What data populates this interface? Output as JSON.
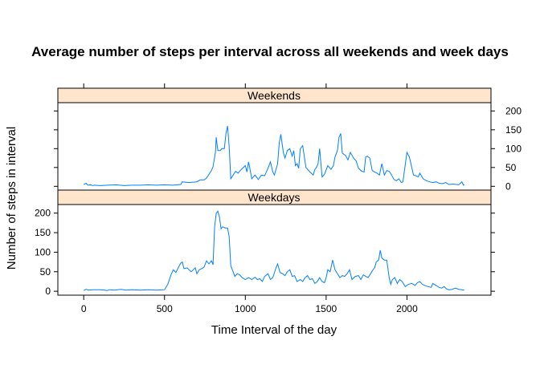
{
  "chart_data": {
    "type": "line",
    "title": "Average number of steps per interval across all weekends and week days",
    "xlabel": "Time Interval of the day",
    "ylabel": "Number of steps in interval",
    "xlim": [
      -160,
      2520
    ],
    "ylim": [
      -10,
      222
    ],
    "x_ticks": [
      0,
      500,
      1000,
      1500,
      2000
    ],
    "y_ticks": [
      0,
      50,
      100,
      150,
      200
    ],
    "line_color": "#0080ff",
    "strip_color": "#ffe5cc",
    "panels": [
      {
        "name": "Weekends",
        "y_axis_side": "right",
        "points": [
          [
            0,
            5
          ],
          [
            15,
            8
          ],
          [
            25,
            3
          ],
          [
            45,
            4
          ],
          [
            55,
            2
          ],
          [
            65,
            3
          ],
          [
            100,
            2
          ],
          [
            150,
            3
          ],
          [
            200,
            4
          ],
          [
            250,
            2
          ],
          [
            300,
            3
          ],
          [
            350,
            3
          ],
          [
            400,
            4
          ],
          [
            450,
            3
          ],
          [
            500,
            4
          ],
          [
            550,
            3
          ],
          [
            600,
            5
          ],
          [
            610,
            12
          ],
          [
            650,
            10
          ],
          [
            700,
            12
          ],
          [
            720,
            17
          ],
          [
            745,
            17
          ],
          [
            760,
            22
          ],
          [
            790,
            42
          ],
          [
            800,
            52
          ],
          [
            815,
            90
          ],
          [
            820,
            130
          ],
          [
            830,
            95
          ],
          [
            845,
            95
          ],
          [
            855,
            100
          ],
          [
            870,
            100
          ],
          [
            880,
            140
          ],
          [
            890,
            160
          ],
          [
            900,
            105
          ],
          [
            910,
            20
          ],
          [
            925,
            30
          ],
          [
            940,
            40
          ],
          [
            955,
            35
          ],
          [
            975,
            45
          ],
          [
            1000,
            55
          ],
          [
            1010,
            38
          ],
          [
            1020,
            65
          ],
          [
            1025,
            55
          ],
          [
            1040,
            20
          ],
          [
            1060,
            30
          ],
          [
            1080,
            18
          ],
          [
            1100,
            30
          ],
          [
            1120,
            28
          ],
          [
            1140,
            48
          ],
          [
            1155,
            65
          ],
          [
            1170,
            38
          ],
          [
            1180,
            30
          ],
          [
            1200,
            60
          ],
          [
            1210,
            115
          ],
          [
            1220,
            138
          ],
          [
            1235,
            90
          ],
          [
            1245,
            75
          ],
          [
            1260,
            95
          ],
          [
            1275,
            100
          ],
          [
            1290,
            80
          ],
          [
            1300,
            95
          ],
          [
            1310,
            55
          ],
          [
            1320,
            60
          ],
          [
            1330,
            48
          ],
          [
            1340,
            100
          ],
          [
            1355,
            108
          ],
          [
            1375,
            50
          ],
          [
            1400,
            38
          ],
          [
            1420,
            30
          ],
          [
            1430,
            45
          ],
          [
            1440,
            50
          ],
          [
            1450,
            60
          ],
          [
            1460,
            100
          ],
          [
            1475,
            25
          ],
          [
            1490,
            32
          ],
          [
            1510,
            55
          ],
          [
            1530,
            45
          ],
          [
            1545,
            55
          ],
          [
            1555,
            78
          ],
          [
            1570,
            95
          ],
          [
            1580,
            130
          ],
          [
            1590,
            140
          ],
          [
            1600,
            88
          ],
          [
            1620,
            82
          ],
          [
            1635,
            70
          ],
          [
            1650,
            90
          ],
          [
            1670,
            75
          ],
          [
            1685,
            68
          ],
          [
            1700,
            48
          ],
          [
            1720,
            40
          ],
          [
            1735,
            38
          ],
          [
            1745,
            78
          ],
          [
            1755,
            80
          ],
          [
            1770,
            75
          ],
          [
            1785,
            42
          ],
          [
            1800,
            38
          ],
          [
            1815,
            35
          ],
          [
            1830,
            30
          ],
          [
            1845,
            60
          ],
          [
            1860,
            30
          ],
          [
            1875,
            42
          ],
          [
            1890,
            40
          ],
          [
            1905,
            30
          ],
          [
            1920,
            18
          ],
          [
            1935,
            15
          ],
          [
            1950,
            20
          ],
          [
            1965,
            10
          ],
          [
            1975,
            12
          ],
          [
            2000,
            90
          ],
          [
            2015,
            78
          ],
          [
            2025,
            60
          ],
          [
            2040,
            30
          ],
          [
            2055,
            28
          ],
          [
            2070,
            25
          ],
          [
            2080,
            35
          ],
          [
            2100,
            20
          ],
          [
            2120,
            15
          ],
          [
            2140,
            12
          ],
          [
            2160,
            10
          ],
          [
            2180,
            12
          ],
          [
            2200,
            8
          ],
          [
            2220,
            7
          ],
          [
            2240,
            10
          ],
          [
            2260,
            5
          ],
          [
            2290,
            6
          ],
          [
            2320,
            4
          ],
          [
            2340,
            12
          ],
          [
            2350,
            3
          ],
          [
            2355,
            5
          ]
        ]
      },
      {
        "name": "Weekdays",
        "y_axis_side": "left",
        "points": [
          [
            0,
            2
          ],
          [
            15,
            5
          ],
          [
            30,
            3
          ],
          [
            60,
            4
          ],
          [
            100,
            4
          ],
          [
            130,
            3
          ],
          [
            145,
            2
          ],
          [
            160,
            4
          ],
          [
            190,
            3
          ],
          [
            230,
            5
          ],
          [
            260,
            3
          ],
          [
            300,
            4
          ],
          [
            350,
            3
          ],
          [
            400,
            4
          ],
          [
            450,
            3
          ],
          [
            500,
            4
          ],
          [
            520,
            18
          ],
          [
            540,
            42
          ],
          [
            555,
            55
          ],
          [
            570,
            48
          ],
          [
            585,
            60
          ],
          [
            600,
            72
          ],
          [
            610,
            75
          ],
          [
            620,
            58
          ],
          [
            640,
            60
          ],
          [
            665,
            50
          ],
          [
            690,
            60
          ],
          [
            700,
            45
          ],
          [
            715,
            55
          ],
          [
            730,
            58
          ],
          [
            745,
            62
          ],
          [
            760,
            78
          ],
          [
            775,
            70
          ],
          [
            790,
            78
          ],
          [
            800,
            68
          ],
          [
            810,
            165
          ],
          [
            820,
            200
          ],
          [
            830,
            205
          ],
          [
            840,
            190
          ],
          [
            850,
            160
          ],
          [
            860,
            165
          ],
          [
            875,
            162
          ],
          [
            890,
            162
          ],
          [
            900,
            140
          ],
          [
            910,
            65
          ],
          [
            920,
            55
          ],
          [
            935,
            38
          ],
          [
            950,
            45
          ],
          [
            965,
            42
          ],
          [
            980,
            35
          ],
          [
            1000,
            30
          ],
          [
            1020,
            35
          ],
          [
            1040,
            30
          ],
          [
            1060,
            36
          ],
          [
            1075,
            30
          ],
          [
            1090,
            32
          ],
          [
            1105,
            25
          ],
          [
            1120,
            38
          ],
          [
            1140,
            45
          ],
          [
            1155,
            30
          ],
          [
            1170,
            35
          ],
          [
            1190,
            60
          ],
          [
            1200,
            70
          ],
          [
            1215,
            48
          ],
          [
            1230,
            45
          ],
          [
            1245,
            40
          ],
          [
            1260,
            50
          ],
          [
            1275,
            55
          ],
          [
            1290,
            38
          ],
          [
            1305,
            40
          ],
          [
            1320,
            25
          ],
          [
            1340,
            30
          ],
          [
            1355,
            25
          ],
          [
            1370,
            35
          ],
          [
            1385,
            40
          ],
          [
            1400,
            30
          ],
          [
            1415,
            32
          ],
          [
            1430,
            20
          ],
          [
            1445,
            25
          ],
          [
            1460,
            35
          ],
          [
            1475,
            25
          ],
          [
            1490,
            22
          ],
          [
            1500,
            35
          ],
          [
            1510,
            55
          ],
          [
            1525,
            50
          ],
          [
            1540,
            80
          ],
          [
            1555,
            55
          ],
          [
            1570,
            45
          ],
          [
            1585,
            35
          ],
          [
            1600,
            40
          ],
          [
            1615,
            38
          ],
          [
            1630,
            45
          ],
          [
            1645,
            55
          ],
          [
            1660,
            30
          ],
          [
            1680,
            38
          ],
          [
            1700,
            40
          ],
          [
            1715,
            30
          ],
          [
            1730,
            42
          ],
          [
            1745,
            38
          ],
          [
            1760,
            35
          ],
          [
            1775,
            45
          ],
          [
            1790,
            55
          ],
          [
            1800,
            60
          ],
          [
            1810,
            75
          ],
          [
            1825,
            80
          ],
          [
            1835,
            105
          ],
          [
            1845,
            85
          ],
          [
            1860,
            80
          ],
          [
            1875,
            80
          ],
          [
            1890,
            35
          ],
          [
            1900,
            18
          ],
          [
            1910,
            30
          ],
          [
            1925,
            35
          ],
          [
            1940,
            20
          ],
          [
            1955,
            30
          ],
          [
            1970,
            25
          ],
          [
            1990,
            12
          ],
          [
            2010,
            18
          ],
          [
            2030,
            20
          ],
          [
            2050,
            15
          ],
          [
            2065,
            22
          ],
          [
            2080,
            25
          ],
          [
            2095,
            18
          ],
          [
            2110,
            15
          ],
          [
            2130,
            12
          ],
          [
            2150,
            10
          ],
          [
            2160,
            20
          ],
          [
            2180,
            15
          ],
          [
            2200,
            10
          ],
          [
            2215,
            8
          ],
          [
            2230,
            12
          ],
          [
            2245,
            6
          ],
          [
            2260,
            4
          ],
          [
            2280,
            5
          ],
          [
            2300,
            8
          ],
          [
            2320,
            5
          ],
          [
            2340,
            4
          ],
          [
            2355,
            3
          ]
        ]
      }
    ]
  }
}
